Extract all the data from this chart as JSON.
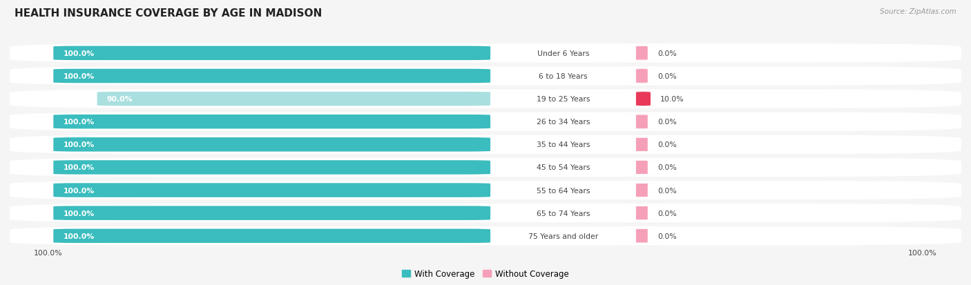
{
  "title": "HEALTH INSURANCE COVERAGE BY AGE IN MADISON",
  "source": "Source: ZipAtlas.com",
  "categories": [
    "Under 6 Years",
    "6 to 18 Years",
    "19 to 25 Years",
    "26 to 34 Years",
    "35 to 44 Years",
    "45 to 54 Years",
    "55 to 64 Years",
    "65 to 74 Years",
    "75 Years and older"
  ],
  "with_coverage": [
    100.0,
    100.0,
    90.0,
    100.0,
    100.0,
    100.0,
    100.0,
    100.0,
    100.0
  ],
  "without_coverage": [
    0.0,
    0.0,
    10.0,
    0.0,
    0.0,
    0.0,
    0.0,
    0.0,
    0.0
  ],
  "color_with": "#3bbcbe",
  "color_with_light": "#aadfe0",
  "color_without_highlight": "#e8395a",
  "color_without_normal": "#f5a0b8",
  "color_bg_row": "#e8e8e8",
  "color_bg_figure": "#f5f5f5",
  "color_title": "#222222",
  "color_source": "#999999",
  "legend_with": "With Coverage",
  "legend_without": "Without Coverage"
}
